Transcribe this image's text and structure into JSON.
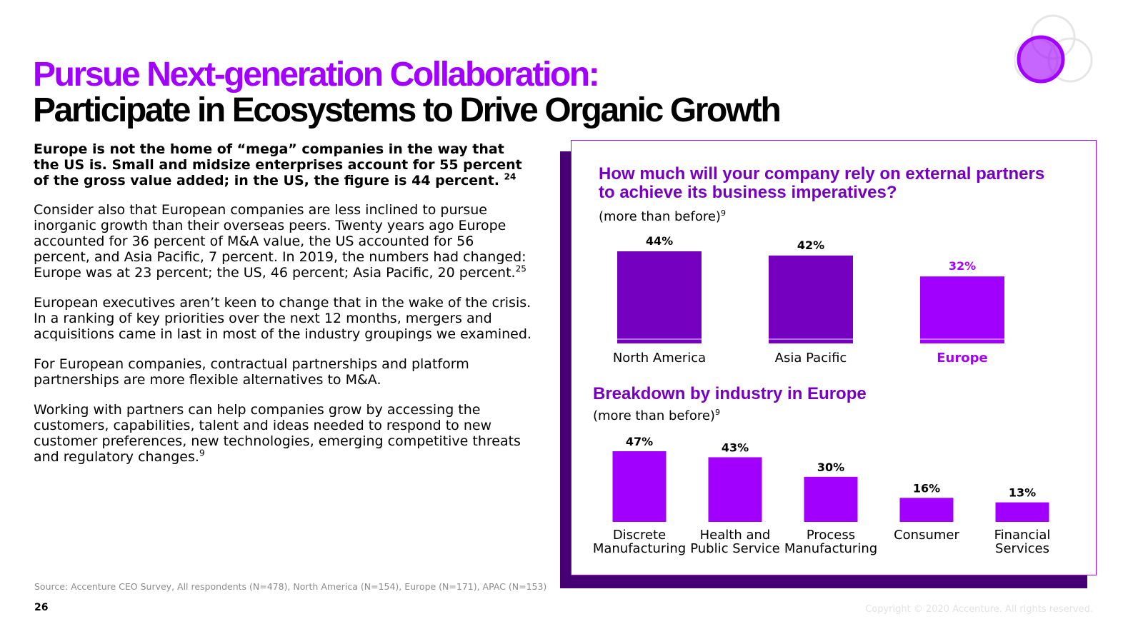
{
  "title": {
    "line1": "Pursue Next-generation Collaboration:",
    "line2": "Participate in Ecosystems to Drive Organic Growth"
  },
  "body": {
    "lead_text": "Europe is not the home of “mega” companies in the way that the US is. Small and midsize enterprises account for 55 percent of the gross value added; in the US, the figure is 44 percent.",
    "lead_ref": "24",
    "p1_text": "Consider also that European companies are less inclined to pursue inorganic growth than their overseas peers. Twenty years ago Europe accounted for 36 percent of M&A value, the US accounted for 56 percent, and Asia Pacific, 7 percent. In 2019, the numbers had changed: Europe was at 23 percent; the US, 46 percent; Asia Pacific, 20 percent.",
    "p1_ref": "25",
    "p2_text": "European executives aren’t keen to change that in the wake of the crisis. In a ranking of key priorities over the next 12 months, mergers and acquisitions came in last in most of the industry groupings we examined.",
    "p3_text": "For European companies, contractual partnerships and platform partnerships are more flexible alternatives to M&A.",
    "p4_text": "Working with partners can help companies grow by accessing the customers, capabilities, talent and ideas needed to respond to new customer preferences, new technologies, emerging competitive threats and regulatory changes.",
    "p4_ref": "9"
  },
  "footer": {
    "source": "Source: Accenture CEO Survey, All respondents (N=478), North America (N=154), Europe (N=171), APAC (N=153)",
    "page_number": "26",
    "copyright": "Copyright © 2020 Accenture. All rights reserved."
  },
  "colors": {
    "purple_bright": "#a100ff",
    "purple_mid": "#7500c0",
    "purple_dark": "#460073"
  },
  "icons": {
    "logo": "accenture-circles-logo"
  },
  "chart_data": [
    {
      "type": "bar",
      "title": "How much will your company rely on external partners to achieve its business imperatives?",
      "subtitle": "(more than before)",
      "subtitle_ref": "9",
      "categories": [
        "North America",
        "Asia Pacific",
        "Europe"
      ],
      "values": [
        44,
        42,
        32
      ],
      "labels": [
        "44%",
        "42%",
        "32%"
      ],
      "bar_colors": [
        "#7500c0",
        "#7500c0",
        "#a100ff"
      ],
      "highlight": "Europe",
      "ylim": [
        0,
        44
      ]
    },
    {
      "type": "bar",
      "title": "Breakdown by industry in Europe",
      "subtitle": "(more than before)",
      "subtitle_ref": "9",
      "categories": [
        "Discrete Manufacturing",
        "Health and Public Service",
        "Process Manufacturing",
        "Consumer",
        "Financial Services"
      ],
      "values": [
        47,
        43,
        30,
        16,
        13
      ],
      "labels": [
        "47%",
        "43%",
        "30%",
        "16%",
        "13%"
      ],
      "bar_color": "#a100ff",
      "ylim": [
        0,
        47
      ]
    }
  ]
}
